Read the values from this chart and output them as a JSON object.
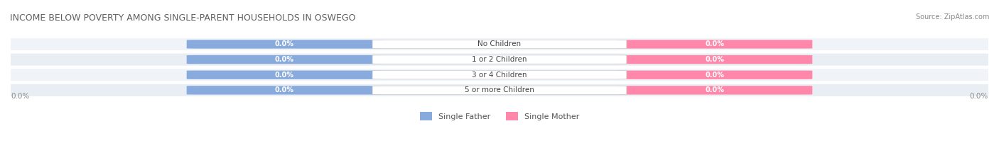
{
  "title": "INCOME BELOW POVERTY AMONG SINGLE-PARENT HOUSEHOLDS IN OSWEGO",
  "source_text": "Source: ZipAtlas.com",
  "categories": [
    "No Children",
    "1 or 2 Children",
    "3 or 4 Children",
    "5 or more Children"
  ],
  "single_father_values": [
    0.0,
    0.0,
    0.0,
    0.0
  ],
  "single_mother_values": [
    0.0,
    0.0,
    0.0,
    0.0
  ],
  "father_color": "#88AADD",
  "mother_color": "#FF88AA",
  "bar_bg_color": "#E8EEF4",
  "row_bg_color_odd": "#F0F4F8",
  "row_bg_color_even": "#E8EEF4",
  "title_color": "#606060",
  "label_color": "#606060",
  "axis_label_color": "#888888",
  "axis_value": "0.0%",
  "legend_father_label": "Single Father",
  "legend_mother_label": "Single Mother",
  "figsize": [
    14.06,
    2.33
  ],
  "dpi": 100
}
